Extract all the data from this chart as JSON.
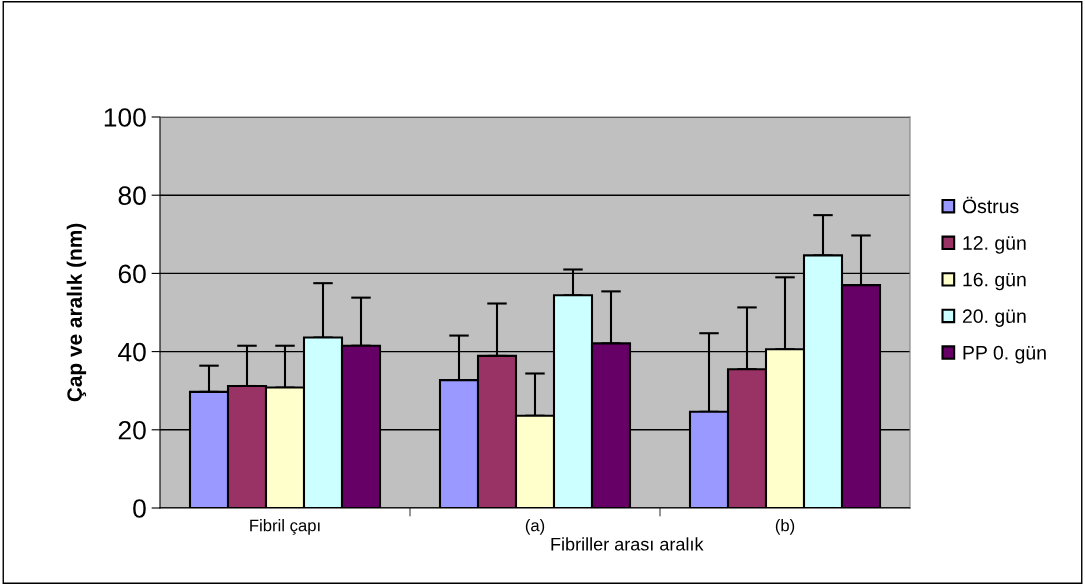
{
  "chart_data": {
    "type": "bar",
    "ylabel": "Çap ve aralık (nm)",
    "xlabel": "Fibriller arası aralık",
    "categories": [
      "Fibril çapı",
      "(a)",
      "(b)"
    ],
    "series": [
      {
        "name": "Östrus",
        "color": "#9999ff",
        "values": [
          29.7,
          32.7,
          24.6
        ],
        "errors": [
          [
            29.7,
            36.4
          ],
          [
            32.7,
            44.1
          ],
          [
            24.6,
            44.7
          ]
        ]
      },
      {
        "name": "12. gün",
        "color": "#993366",
        "values": [
          31.2,
          38.9,
          35.5
        ],
        "errors": [
          [
            31.2,
            41.5
          ],
          [
            38.9,
            52.3
          ],
          [
            35.5,
            51.3
          ]
        ]
      },
      {
        "name": "16. gün",
        "color": "#ffffcc",
        "values": [
          30.8,
          23.6,
          40.6
        ],
        "errors": [
          [
            30.8,
            41.5
          ],
          [
            23.6,
            34.4
          ],
          [
            40.6,
            59.0
          ]
        ]
      },
      {
        "name": "20. gün",
        "color": "#ccffff",
        "values": [
          43.6,
          54.4,
          64.6
        ],
        "errors": [
          [
            43.6,
            57.5
          ],
          [
            54.4,
            61.0
          ],
          [
            64.6,
            74.9
          ]
        ]
      },
      {
        "name": "PP 0. gün",
        "color": "#660066",
        "values": [
          41.5,
          42.1,
          57.0
        ],
        "errors": [
          [
            41.5,
            53.8
          ],
          [
            42.1,
            55.4
          ],
          [
            57.0,
            69.7
          ]
        ]
      }
    ],
    "ylim": [
      0,
      100
    ],
    "yticks": [
      0,
      20,
      40,
      60,
      80,
      100
    ],
    "grid": "y",
    "legend": "right"
  }
}
